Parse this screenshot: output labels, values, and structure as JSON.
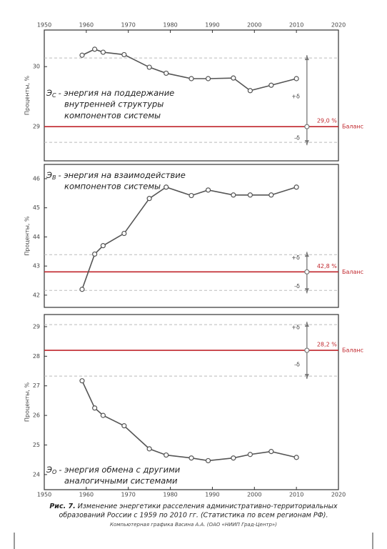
{
  "chart_data": [
    {
      "type": "line",
      "y_label": "Проценты, %",
      "annotation": {
        "symbol": "Э",
        "subscript": "С",
        "lines": [
          "- энергия на поддержание",
          "внутренней структуры",
          "компонентов системы"
        ]
      },
      "x": [
        1959,
        1962,
        1964,
        1969,
        1975,
        1979,
        1985,
        1989,
        1995,
        1999,
        2004,
        2010
      ],
      "values": [
        30.19,
        30.29,
        30.24,
        30.2,
        29.99,
        29.89,
        29.8,
        29.8,
        29.81,
        29.6,
        29.69,
        29.8
      ],
      "color": "#555555",
      "xlim": [
        1950,
        2020
      ],
      "xticks": [
        1950,
        1960,
        1970,
        1980,
        1990,
        2000,
        2010,
        2020
      ],
      "xaxis_position": "top",
      "ylim": [
        28.43,
        30.61
      ],
      "yticks": [
        29,
        30
      ],
      "balance": {
        "value": 29.0,
        "label": "29,0 %"
      },
      "balance_text": "Баланс",
      "balance_color": "#c0262c",
      "delta_plus": "+δ",
      "delta_minus": "-δ"
    },
    {
      "type": "line",
      "y_label": "Проценты, %",
      "annotation": {
        "symbol": "Э",
        "subscript": "В",
        "lines": [
          "- энергия на взаимодействие",
          "компонентов системы"
        ]
      },
      "x": [
        1959,
        1962,
        1964,
        1969,
        1975,
        1979,
        1985,
        1989,
        1995,
        1999,
        2004,
        2010
      ],
      "values": [
        42.2,
        43.41,
        43.7,
        44.12,
        45.32,
        45.71,
        45.42,
        45.61,
        45.44,
        45.44,
        45.44,
        45.71
      ],
      "color": "#555555",
      "xlim": [
        1950,
        2020
      ],
      "ylim": [
        41.58,
        46.49
      ],
      "yticks": [
        42,
        43,
        44,
        45,
        46
      ],
      "balance": {
        "value": 42.8,
        "label": "42,8 %"
      },
      "balance_text": "Баланс",
      "balance_color": "#c0262c",
      "delta_plus": "+δ",
      "delta_minus": "-δ"
    },
    {
      "type": "line",
      "y_label": "Проценты, %",
      "annotation": {
        "symbol": "Э",
        "subscript": "О",
        "lines": [
          "- энергия обмена с другими",
          "аналогичными системами"
        ]
      },
      "x": [
        1959,
        1962,
        1964,
        1969,
        1975,
        1979,
        1985,
        1989,
        1995,
        1999,
        2004,
        2010
      ],
      "values": [
        27.17,
        26.25,
        26.0,
        25.65,
        24.87,
        24.66,
        24.56,
        24.47,
        24.56,
        24.68,
        24.78,
        24.58
      ],
      "color": "#555555",
      "xlim": [
        1950,
        2020
      ],
      "xticks": [
        1950,
        1960,
        1970,
        1980,
        1990,
        2000,
        2010,
        2020
      ],
      "xaxis_position": "bottom",
      "ylim": [
        23.49,
        29.41
      ],
      "yticks": [
        24,
        25,
        26,
        27,
        28,
        29
      ],
      "balance": {
        "value": 28.2,
        "label": "28,2 %"
      },
      "balance_text": "Баланс",
      "balance_color": "#c0262c",
      "delta_plus": "+δ",
      "delta_minus": "-δ"
    }
  ],
  "caption": {
    "label": "Рис. 7.",
    "lines": [
      "Изменение энергетики расселения административно-территориальных",
      "образований России с 1959 по 2010 гг. (Статистика по всем регионам РФ)."
    ],
    "credit": "Компьютерная графика Васина А.А. (ОАО «НИИП Град-Центр»)"
  }
}
